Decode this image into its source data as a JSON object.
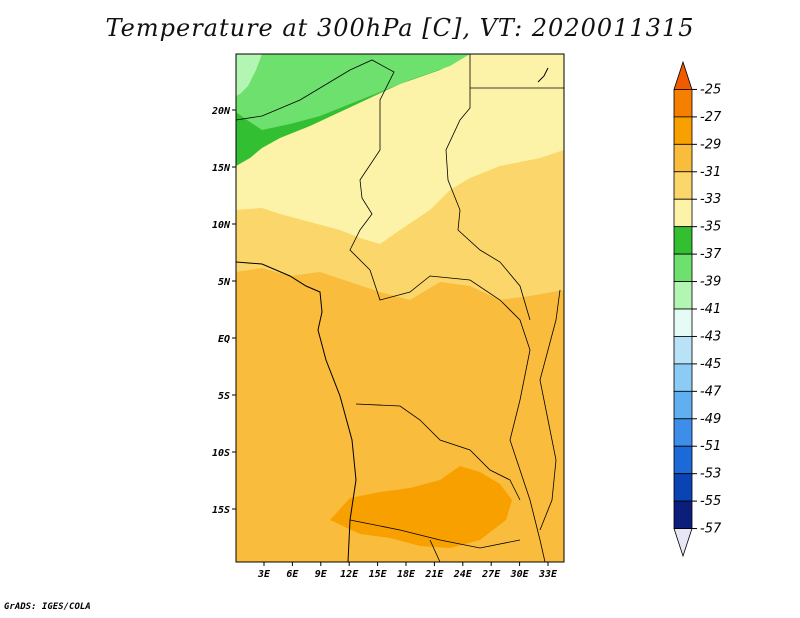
{
  "title": "Temperature at 300hPa [C], VT: 2020011315",
  "credit": "GrADS: IGES/COLA",
  "map": {
    "lat_labels": [
      "20N",
      "15N",
      "10N",
      "5N",
      "EQ",
      "5S",
      "10S",
      "15S"
    ],
    "lon_labels": [
      "3E",
      "6E",
      "9E",
      "12E",
      "15E",
      "18E",
      "21E",
      "24E",
      "27E",
      "30E",
      "33E"
    ]
  },
  "colorbar": {
    "labels": [
      "-25",
      "-27",
      "-29",
      "-31",
      "-33",
      "-35",
      "-37",
      "-39",
      "-41",
      "-43",
      "-45",
      "-47",
      "-49",
      "-51",
      "-53",
      "-55",
      "-57"
    ],
    "colors": [
      "#f05a00",
      "#f57f00",
      "#f8a000",
      "#f9bc3c",
      "#fbd66a",
      "#fdf3a8",
      "#32c032",
      "#6ee06e",
      "#b3f5b3",
      "#e4fbf6",
      "#b8e3f7",
      "#8ccbf5",
      "#60aff0",
      "#3c8ee8",
      "#1c6ad8",
      "#0a44b4",
      "#0a1e7a",
      "#e6e6f7"
    ]
  }
}
